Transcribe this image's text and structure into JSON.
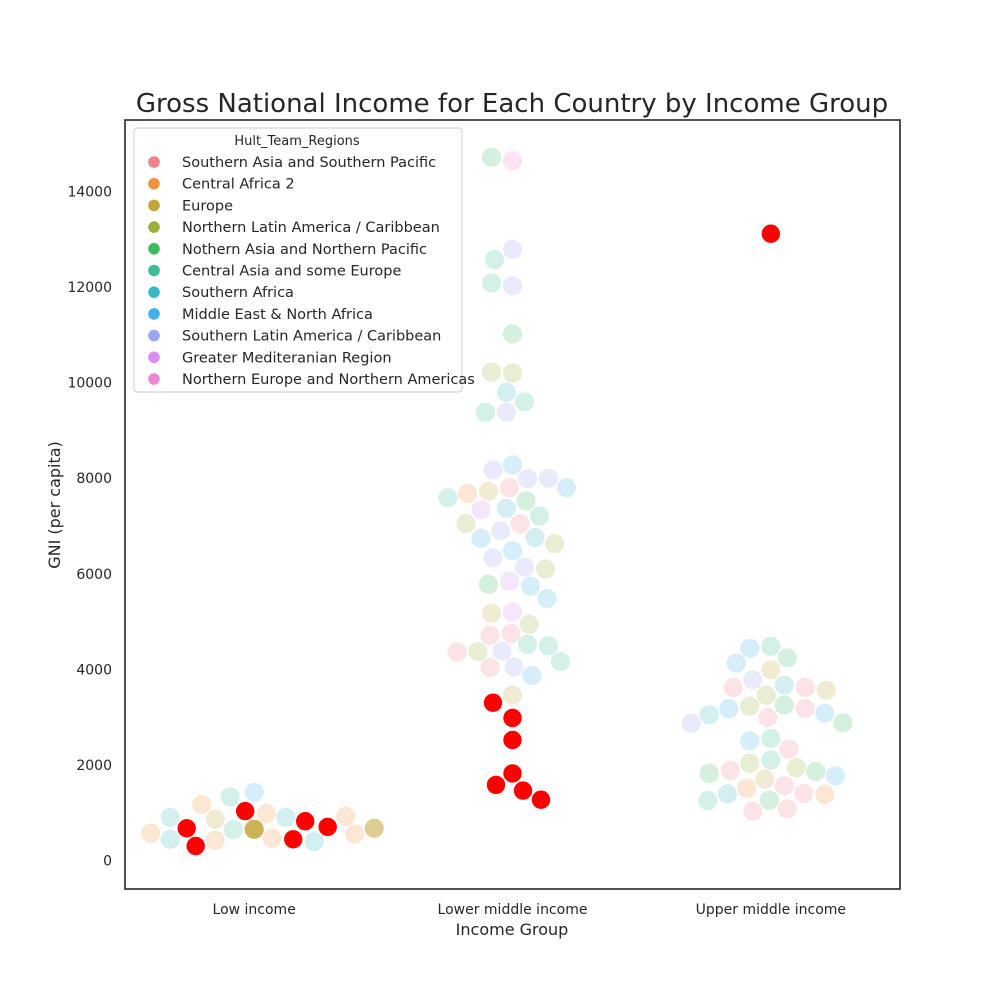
{
  "chart_data": {
    "type": "scatter",
    "subtype": "swarm",
    "title": "Gross National Income for Each Country by Income Group",
    "xlabel": "Income Group",
    "ylabel": "GNI (per capita)",
    "categories": [
      "Low income",
      "Lower middle income",
      "Upper middle income"
    ],
    "ylim": [
      -600,
      15500
    ],
    "yticks": [
      0,
      2000,
      4000,
      6000,
      8000,
      10000,
      12000,
      14000
    ],
    "grid": false,
    "legend": {
      "title": "Hult_Team_Regions",
      "placement": "top-left",
      "entries": [
        {
          "label": "Southern Asia and Southern Pacific",
          "color": "#f0828b"
        },
        {
          "label": "Central Africa 2",
          "color": "#f0913c"
        },
        {
          "label": "Europe",
          "color": "#c4a53a"
        },
        {
          "label": "Northern Latin America / Caribbean",
          "color": "#98b23a"
        },
        {
          "label": "Nothern Asia and Northern Pacific",
          "color": "#3fbb5f"
        },
        {
          "label": "Central Asia and some Europe",
          "color": "#3cbd9c"
        },
        {
          "label": "Southern Africa",
          "color": "#3bb8c4"
        },
        {
          "label": "Middle East & North Africa",
          "color": "#42b0e9"
        },
        {
          "label": "Southern Latin America / Caribbean",
          "color": "#9aa6f1"
        },
        {
          "label": "Greater Mediteranian Region",
          "color": "#d88df2"
        },
        {
          "label": "Northern Europe and Northern Americas",
          "color": "#f084d6"
        }
      ]
    },
    "highlight_color": "#ff0000",
    "series": [
      {
        "category": "Low income",
        "points": [
          {
            "y": 650,
            "color": "#c4a53a",
            "opacity": 0.85
          },
          {
            "y": 640,
            "color": "#3cbd9c",
            "opacity": 0.22
          },
          {
            "y": 980,
            "color": "#f0913c",
            "opacity": 0.22
          },
          {
            "y": 460,
            "color": "#f0913c",
            "opacity": 0.22
          },
          {
            "y": 900,
            "color": "#3bb8c4",
            "opacity": 0.22
          },
          {
            "y": 420,
            "color": "#f0913c",
            "opacity": 0.22
          },
          {
            "y": 1030,
            "highlight": true
          },
          {
            "y": 860,
            "color": "#c4a53a",
            "opacity": 0.22
          },
          {
            "y": 1420,
            "color": "#42b0e9",
            "opacity": 0.22
          },
          {
            "y": 440,
            "highlight": true
          },
          {
            "y": 820,
            "highlight": true
          },
          {
            "y": 1170,
            "color": "#f0913c",
            "opacity": 0.22
          },
          {
            "y": 300,
            "highlight": true
          },
          {
            "y": 670,
            "highlight": true
          },
          {
            "y": 1330,
            "color": "#3cbd9c",
            "opacity": 0.22
          },
          {
            "y": 390,
            "color": "#3bb8c4",
            "opacity": 0.22
          },
          {
            "y": 700,
            "highlight": true
          },
          {
            "y": 900,
            "color": "#3bb8c4",
            "opacity": 0.22
          },
          {
            "y": 440,
            "color": "#3bb8c4",
            "opacity": 0.22
          },
          {
            "y": 920,
            "color": "#f0913c",
            "opacity": 0.22
          },
          {
            "y": 550,
            "color": "#f0913c",
            "opacity": 0.22
          },
          {
            "y": 570,
            "color": "#f0913c",
            "opacity": 0.22
          },
          {
            "y": 670,
            "color": "#c4a53a",
            "opacity": 0.55
          }
        ]
      },
      {
        "category": "Lower middle income",
        "points": [
          {
            "y": 14650,
            "color": "#f084d6",
            "opacity": 0.22
          },
          {
            "y": 14720,
            "color": "#3fbb5f",
            "opacity": 0.22
          },
          {
            "y": 12790,
            "color": "#9aa6f1",
            "opacity": 0.22
          },
          {
            "y": 12580,
            "color": "#3cbd9c",
            "opacity": 0.22
          },
          {
            "y": 12030,
            "color": "#9aa6f1",
            "opacity": 0.22
          },
          {
            "y": 12090,
            "color": "#3cbd9c",
            "opacity": 0.22
          },
          {
            "y": 11020,
            "color": "#3fbb5f",
            "opacity": 0.22
          },
          {
            "y": 10200,
            "color": "#98b23a",
            "opacity": 0.22
          },
          {
            "y": 10220,
            "color": "#98b23a",
            "opacity": 0.22
          },
          {
            "y": 9800,
            "color": "#3bb8c4",
            "opacity": 0.22
          },
          {
            "y": 9600,
            "color": "#3cbd9c",
            "opacity": 0.22
          },
          {
            "y": 9380,
            "color": "#9aa6f1",
            "opacity": 0.22
          },
          {
            "y": 9380,
            "color": "#3cbd9c",
            "opacity": 0.22
          },
          {
            "y": 8280,
            "color": "#42b0e9",
            "opacity": 0.22
          },
          {
            "y": 8170,
            "color": "#9aa6f1",
            "opacity": 0.22
          },
          {
            "y": 7990,
            "color": "#9aa6f1",
            "opacity": 0.22
          },
          {
            "y": 8000,
            "color": "#9aa6f1",
            "opacity": 0.22
          },
          {
            "y": 7800,
            "color": "#f0828b",
            "opacity": 0.22
          },
          {
            "y": 7730,
            "color": "#c4a53a",
            "opacity": 0.22
          },
          {
            "y": 7680,
            "color": "#f0913c",
            "opacity": 0.22
          },
          {
            "y": 7800,
            "color": "#42b0e9",
            "opacity": 0.22
          },
          {
            "y": 7530,
            "color": "#3fbb5f",
            "opacity": 0.22
          },
          {
            "y": 7590,
            "color": "#3cbd9c",
            "opacity": 0.22
          },
          {
            "y": 7370,
            "color": "#3bb8c4",
            "opacity": 0.22
          },
          {
            "y": 7340,
            "color": "#d88df2",
            "opacity": 0.22
          },
          {
            "y": 7210,
            "color": "#3cbd9c",
            "opacity": 0.22
          },
          {
            "y": 7050,
            "color": "#f0828b",
            "opacity": 0.22
          },
          {
            "y": 7050,
            "color": "#98b23a",
            "opacity": 0.22
          },
          {
            "y": 6900,
            "color": "#9aa6f1",
            "opacity": 0.22
          },
          {
            "y": 6760,
            "color": "#3bb8c4",
            "opacity": 0.22
          },
          {
            "y": 6740,
            "color": "#42b0e9",
            "opacity": 0.22
          },
          {
            "y": 6630,
            "color": "#98b23a",
            "opacity": 0.22
          },
          {
            "y": 6480,
            "color": "#42b0e9",
            "opacity": 0.22
          },
          {
            "y": 6330,
            "color": "#9aa6f1",
            "opacity": 0.22
          },
          {
            "y": 6140,
            "color": "#9aa6f1",
            "opacity": 0.22
          },
          {
            "y": 6100,
            "color": "#98b23a",
            "opacity": 0.22
          },
          {
            "y": 5840,
            "color": "#d88df2",
            "opacity": 0.22
          },
          {
            "y": 5780,
            "color": "#3fbb5f",
            "opacity": 0.22
          },
          {
            "y": 5740,
            "color": "#42b0e9",
            "opacity": 0.22
          },
          {
            "y": 5480,
            "color": "#42b0e9",
            "opacity": 0.22
          },
          {
            "y": 5200,
            "color": "#d88df2",
            "opacity": 0.22
          },
          {
            "y": 5170,
            "color": "#c4a53a",
            "opacity": 0.22
          },
          {
            "y": 4940,
            "color": "#98b23a",
            "opacity": 0.22
          },
          {
            "y": 4750,
            "color": "#f0828b",
            "opacity": 0.22
          },
          {
            "y": 4710,
            "color": "#f0828b",
            "opacity": 0.22
          },
          {
            "y": 4520,
            "color": "#3cbd9c",
            "opacity": 0.22
          },
          {
            "y": 4490,
            "color": "#3cbd9c",
            "opacity": 0.22
          },
          {
            "y": 4380,
            "color": "#9aa6f1",
            "opacity": 0.22
          },
          {
            "y": 4370,
            "color": "#98b23a",
            "opacity": 0.22
          },
          {
            "y": 4360,
            "color": "#f0828b",
            "opacity": 0.22
          },
          {
            "y": 4160,
            "color": "#3cbd9c",
            "opacity": 0.22
          },
          {
            "y": 4050,
            "color": "#9aa6f1",
            "opacity": 0.22
          },
          {
            "y": 4040,
            "color": "#f0828b",
            "opacity": 0.22
          },
          {
            "y": 3870,
            "color": "#42b0e9",
            "opacity": 0.22
          },
          {
            "y": 3460,
            "color": "#c4a53a",
            "opacity": 0.22
          },
          {
            "y": 3300,
            "highlight": true
          },
          {
            "y": 2980,
            "highlight": true
          },
          {
            "y": 2520,
            "highlight": true
          },
          {
            "y": 1820,
            "highlight": true
          },
          {
            "y": 1580,
            "highlight": true
          },
          {
            "y": 1460,
            "highlight": true
          },
          {
            "y": 1270,
            "highlight": true
          }
        ]
      },
      {
        "category": "Upper middle income",
        "points": [
          {
            "y": 13120,
            "highlight": true
          },
          {
            "y": 4480,
            "color": "#3cbd9c",
            "opacity": 0.22
          },
          {
            "y": 4440,
            "color": "#42b0e9",
            "opacity": 0.22
          },
          {
            "y": 4240,
            "color": "#3fbb5f",
            "opacity": 0.22
          },
          {
            "y": 4130,
            "color": "#42b0e9",
            "opacity": 0.22
          },
          {
            "y": 3990,
            "color": "#c4a53a",
            "opacity": 0.22
          },
          {
            "y": 3780,
            "color": "#9aa6f1",
            "opacity": 0.22
          },
          {
            "y": 3670,
            "color": "#3bb8c4",
            "opacity": 0.22
          },
          {
            "y": 3620,
            "color": "#f0828b",
            "opacity": 0.22
          },
          {
            "y": 3620,
            "color": "#f0828b",
            "opacity": 0.22
          },
          {
            "y": 3560,
            "color": "#c4a53a",
            "opacity": 0.22
          },
          {
            "y": 3460,
            "color": "#98b23a",
            "opacity": 0.22
          },
          {
            "y": 3250,
            "color": "#3fbb5f",
            "opacity": 0.22
          },
          {
            "y": 3230,
            "color": "#98b23a",
            "opacity": 0.22
          },
          {
            "y": 3180,
            "color": "#f0828b",
            "opacity": 0.22
          },
          {
            "y": 3170,
            "color": "#42b0e9",
            "opacity": 0.22
          },
          {
            "y": 3080,
            "color": "#42b0e9",
            "opacity": 0.22
          },
          {
            "y": 3050,
            "color": "#3bb8c4",
            "opacity": 0.22
          },
          {
            "y": 2990,
            "color": "#f0828b",
            "opacity": 0.22
          },
          {
            "y": 2880,
            "color": "#3fbb5f",
            "opacity": 0.22
          },
          {
            "y": 2870,
            "color": "#9aa6f1",
            "opacity": 0.22
          },
          {
            "y": 2550,
            "color": "#3cbd9c",
            "opacity": 0.22
          },
          {
            "y": 2500,
            "color": "#42b0e9",
            "opacity": 0.22
          },
          {
            "y": 2330,
            "color": "#f0828b",
            "opacity": 0.22
          },
          {
            "y": 2100,
            "color": "#3cbd9c",
            "opacity": 0.22
          },
          {
            "y": 2030,
            "color": "#98b23a",
            "opacity": 0.22
          },
          {
            "y": 1940,
            "color": "#98b23a",
            "opacity": 0.22
          },
          {
            "y": 1880,
            "color": "#f0828b",
            "opacity": 0.22
          },
          {
            "y": 1860,
            "color": "#3fbb5f",
            "opacity": 0.22
          },
          {
            "y": 1820,
            "color": "#3fbb5f",
            "opacity": 0.22
          },
          {
            "y": 1770,
            "color": "#42b0e9",
            "opacity": 0.22
          },
          {
            "y": 1700,
            "color": "#c4a53a",
            "opacity": 0.22
          },
          {
            "y": 1560,
            "color": "#f0828b",
            "opacity": 0.22
          },
          {
            "y": 1510,
            "color": "#f0913c",
            "opacity": 0.22
          },
          {
            "y": 1400,
            "color": "#f0828b",
            "opacity": 0.22
          },
          {
            "y": 1390,
            "color": "#3bb8c4",
            "opacity": 0.22
          },
          {
            "y": 1380,
            "color": "#f0913c",
            "opacity": 0.22
          },
          {
            "y": 1260,
            "color": "#3fbb5f",
            "opacity": 0.22
          },
          {
            "y": 1250,
            "color": "#3cbd9c",
            "opacity": 0.22
          },
          {
            "y": 1080,
            "color": "#f0828b",
            "opacity": 0.22
          },
          {
            "y": 1030,
            "color": "#f0828b",
            "opacity": 0.22
          }
        ]
      }
    ]
  }
}
